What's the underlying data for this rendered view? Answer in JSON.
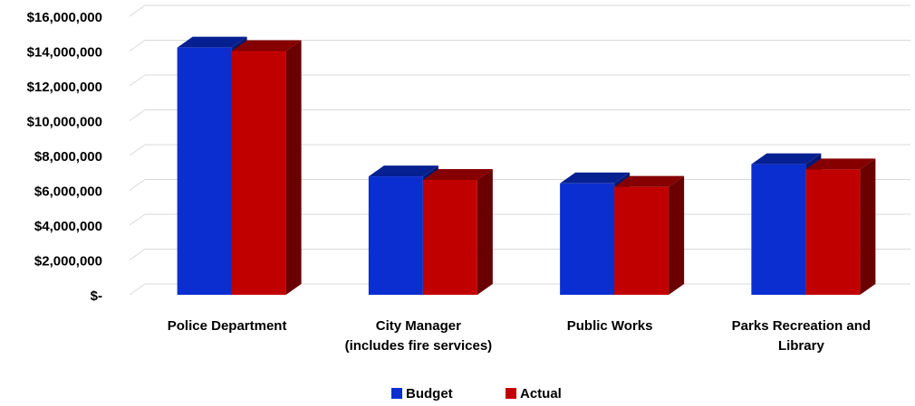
{
  "chart_data": {
    "type": "bar3d",
    "categories": [
      "Police Department",
      "City Manager\n(includes fire services)",
      "Public Works",
      "Parks Recreation and\nLibrary"
    ],
    "series": [
      {
        "name": "Budget",
        "color": "#0a2ecf",
        "values": [
          14200000,
          6800000,
          6400000,
          7500000
        ]
      },
      {
        "name": "Actual",
        "color": "#c00000",
        "values": [
          14000000,
          6600000,
          6200000,
          7200000
        ]
      }
    ],
    "ylim": [
      0,
      16000000
    ],
    "yticks": [
      {
        "value": 0,
        "label": "$-"
      },
      {
        "value": 2000000,
        "label": "$2,000,000"
      },
      {
        "value": 4000000,
        "label": "$4,000,000"
      },
      {
        "value": 6000000,
        "label": "$6,000,000"
      },
      {
        "value": 8000000,
        "label": "$8,000,000"
      },
      {
        "value": 10000000,
        "label": "$10,000,000"
      },
      {
        "value": 12000000,
        "label": "$12,000,000"
      },
      {
        "value": 14000000,
        "label": "$14,000,000"
      },
      {
        "value": 16000000,
        "label": "$16,000,000"
      }
    ],
    "grid": true,
    "legend": "bottom"
  }
}
